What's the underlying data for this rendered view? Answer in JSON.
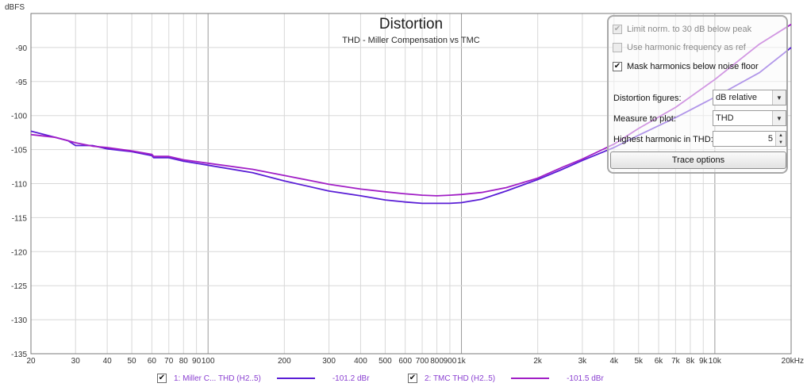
{
  "colors": {
    "series1": "#5a1ed6",
    "series2": "#a11fc6",
    "grid_minor": "#d8d8d8",
    "grid_major": "#9a9a9a",
    "plot_border": "#7a7a7a"
  },
  "chart_data": {
    "type": "line",
    "title": "Distortion",
    "subtitle": "THD - Miller Compensation vs TMC",
    "ylabel": "dBFS",
    "x_unit": "Hz",
    "xscale": "log",
    "xlim": [
      20,
      20000
    ],
    "ylim": [
      -135,
      -85
    ],
    "grid": true,
    "x_tick_labels": [
      {
        "v": 20,
        "t": "20"
      },
      {
        "v": 30,
        "t": "30"
      },
      {
        "v": 40,
        "t": "40"
      },
      {
        "v": 50,
        "t": "50"
      },
      {
        "v": 60,
        "t": "60"
      },
      {
        "v": 70,
        "t": "70"
      },
      {
        "v": 80,
        "t": "80"
      },
      {
        "v": 90,
        "t": "90"
      },
      {
        "v": 100,
        "t": "100"
      },
      {
        "v": 200,
        "t": "200"
      },
      {
        "v": 300,
        "t": "300"
      },
      {
        "v": 400,
        "t": "400"
      },
      {
        "v": 500,
        "t": "500"
      },
      {
        "v": 600,
        "t": "600"
      },
      {
        "v": 700,
        "t": "700"
      },
      {
        "v": 800,
        "t": "800"
      },
      {
        "v": 900,
        "t": "900"
      },
      {
        "v": 1000,
        "t": "1k"
      },
      {
        "v": 2000,
        "t": "2k"
      },
      {
        "v": 3000,
        "t": "3k"
      },
      {
        "v": 4000,
        "t": "4k"
      },
      {
        "v": 5000,
        "t": "5k"
      },
      {
        "v": 6000,
        "t": "6k"
      },
      {
        "v": 7000,
        "t": "7k"
      },
      {
        "v": 8000,
        "t": "8k"
      },
      {
        "v": 9000,
        "t": "9k"
      },
      {
        "v": 10000,
        "t": "10k"
      },
      {
        "v": 20000,
        "t": "20kHz"
      }
    ],
    "y_tick_labels": [
      {
        "v": -90,
        "t": "-90"
      },
      {
        "v": -95,
        "t": "-95"
      },
      {
        "v": -100,
        "t": "-100"
      },
      {
        "v": -105,
        "t": "-105"
      },
      {
        "v": -110,
        "t": "-110"
      },
      {
        "v": -115,
        "t": "-115"
      },
      {
        "v": -120,
        "t": "-120"
      },
      {
        "v": -125,
        "t": "-125"
      },
      {
        "v": -130,
        "t": "-130"
      },
      {
        "v": -135,
        "t": "-135"
      }
    ],
    "series": [
      {
        "name": "1: Miller C... THD (H2..5)",
        "legend_value": "-101.2 dBr",
        "x": [
          20,
          25,
          28,
          30,
          35,
          40,
          50,
          60,
          61,
          70,
          80,
          100,
          150,
          200,
          300,
          400,
          500,
          600,
          700,
          800,
          900,
          1000,
          1200,
          1500,
          2000,
          2500,
          3000,
          4000,
          5000,
          7000,
          10000,
          15000,
          20000
        ],
        "y": [
          -102.3,
          -103.2,
          -103.7,
          -104.4,
          -104.4,
          -104.9,
          -105.3,
          -105.9,
          -106.2,
          -106.2,
          -106.7,
          -107.3,
          -108.4,
          -109.6,
          -111.1,
          -111.8,
          -112.4,
          -112.7,
          -112.9,
          -112.9,
          -112.9,
          -112.8,
          -112.3,
          -111.1,
          -109.4,
          -107.9,
          -106.6,
          -104.7,
          -102.9,
          -100.3,
          -97.3,
          -93.7,
          -90.0
        ]
      },
      {
        "name": "2: TMC THD (H2..5)",
        "legend_value": "-101.5 dBr",
        "x": [
          20,
          25,
          28,
          30,
          35,
          40,
          50,
          60,
          61,
          70,
          80,
          100,
          150,
          200,
          300,
          400,
          500,
          600,
          700,
          800,
          900,
          1000,
          1200,
          1500,
          2000,
          2500,
          3000,
          4000,
          5000,
          7000,
          10000,
          15000,
          20000
        ],
        "y": [
          -102.8,
          -103.2,
          -103.7,
          -104.0,
          -104.5,
          -104.7,
          -105.2,
          -105.7,
          -106.0,
          -106.0,
          -106.5,
          -107.0,
          -107.9,
          -108.8,
          -110.1,
          -110.8,
          -111.2,
          -111.5,
          -111.7,
          -111.8,
          -111.7,
          -111.6,
          -111.3,
          -110.6,
          -109.2,
          -107.6,
          -106.4,
          -104.2,
          -101.9,
          -98.8,
          -94.7,
          -89.5,
          -86.6
        ]
      }
    ]
  },
  "options_panel": {
    "limit_norm_label": "Limit norm. to 30 dB below peak",
    "harmonic_freq_label": "Use harmonic frequency as ref",
    "mask_harmonics_label": "Mask harmonics below noise floor",
    "distortion_figures_label": "Distortion figures:",
    "distortion_figures_value": "dB relative",
    "measure_label": "Measure to plot:",
    "measure_value": "THD",
    "highest_harmonic_label": "Highest harmonic in THD:",
    "highest_harmonic_value": "5",
    "trace_options_label": "Trace options"
  }
}
